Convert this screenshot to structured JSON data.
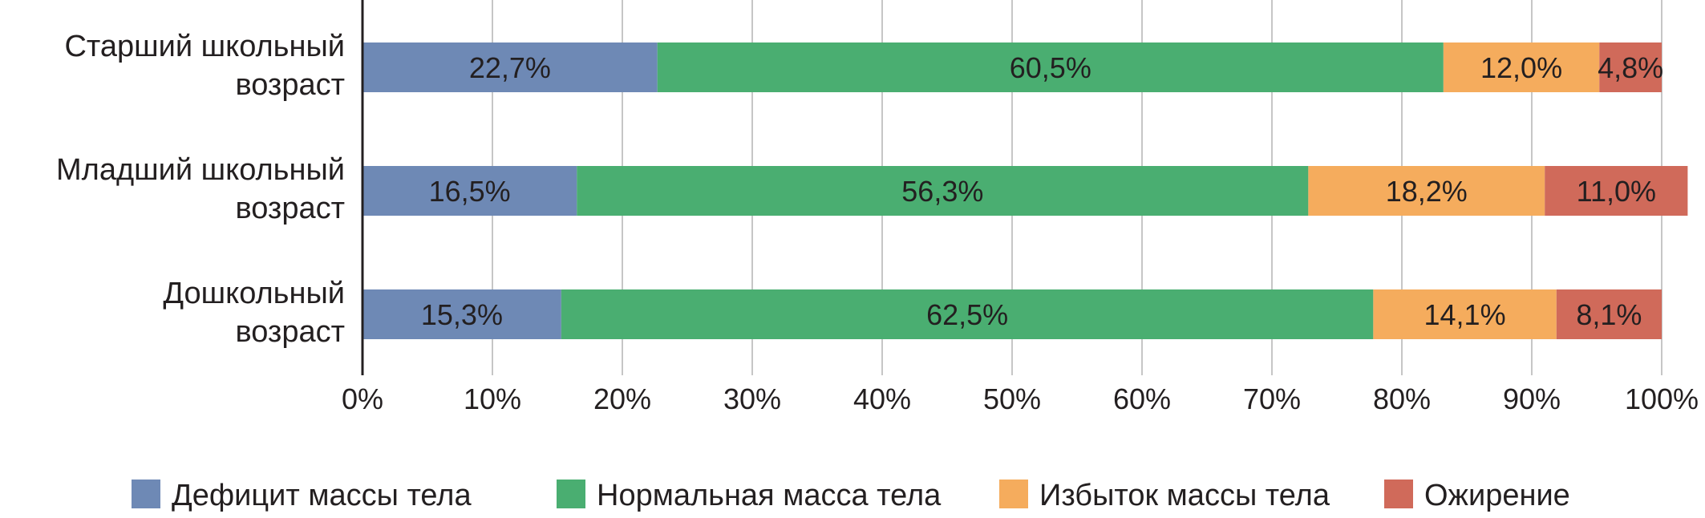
{
  "chart_data": {
    "type": "bar",
    "orientation": "horizontal",
    "stacked": true,
    "percent": true,
    "categories": [
      [
        "Старший школьный",
        "возраст"
      ],
      [
        "Младший школьный",
        "возраст"
      ],
      [
        "Дошкольный",
        "возраст"
      ]
    ],
    "series": [
      {
        "name": "Дефицит массы тела",
        "color": "#6e89b5",
        "values": [
          22.7,
          16.5,
          15.3
        ],
        "labels": [
          "22,7%",
          "16,5%",
          "15,3%"
        ]
      },
      {
        "name": "Нормальная масса тела",
        "color": "#4aae71",
        "values": [
          60.5,
          56.3,
          62.5
        ],
        "labels": [
          "60,5%",
          "56,3%",
          "62,5%"
        ]
      },
      {
        "name": "Избыток массы тела",
        "color": "#f5ac5d",
        "values": [
          12.0,
          18.2,
          14.1
        ],
        "labels": [
          "12,0%",
          "18,2%",
          "14,1%"
        ]
      },
      {
        "name": "Ожирение",
        "color": "#d06a5a",
        "values": [
          4.8,
          11.0,
          8.1
        ],
        "labels": [
          "4,8%",
          "11,0%",
          "8,1%"
        ]
      }
    ],
    "xticks": [
      "0%",
      "10%",
      "20%",
      "30%",
      "40%",
      "50%",
      "60%",
      "70%",
      "80%",
      "90%",
      "100%"
    ],
    "xlim": [
      0,
      100
    ],
    "grid": true,
    "legend_position": "bottom",
    "title": "",
    "xlabel": "",
    "ylabel": ""
  }
}
